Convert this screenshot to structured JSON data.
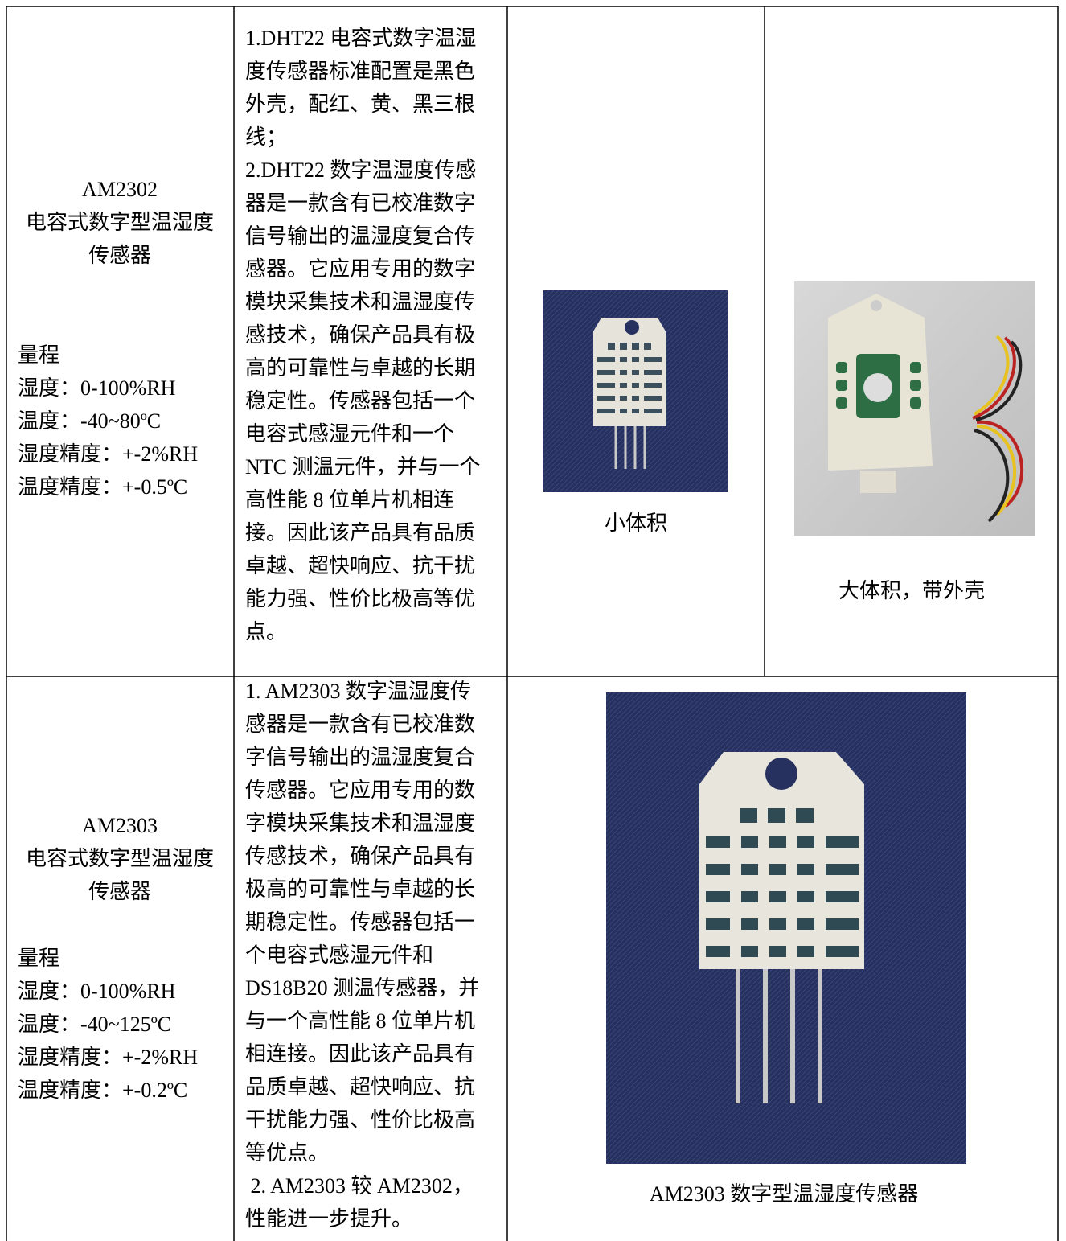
{
  "table": {
    "rows": [
      {
        "model": "AM2302",
        "name_lines": [
          "电容式数字型温湿度",
          "传感器"
        ],
        "specs": [
          "量程",
          "湿度：0-100%RH",
          "温度：-40~80ºC",
          "湿度精度：+-2%RH",
          "温度精度：+-0.5ºC"
        ],
        "description": [
          "1.DHT22 电容式数字温湿",
          "度传感器标准配置是黑色",
          "外壳，配红、黄、黑三根",
          "线；",
          "2.DHT22 数字温湿度传感",
          "器是一款含有已校准数字",
          "信号输出的温湿度复合传",
          "感器。它应用专用的数字",
          "模块采集技术和温湿度传",
          "感技术，确保产品具有极",
          "高的可靠性与卓越的长期",
          "稳定性。传感器包括一个",
          "电容式感湿元件和一个",
          "NTC 测温元件，并与一个",
          "高性能 8 位单片机相连",
          "接。因此该产品具有品质",
          "卓越、超快响应、抗干扰",
          "能力强、性价比极高等优",
          "点。"
        ],
        "captions": [
          "小体积",
          "大体积，带外壳"
        ]
      },
      {
        "model": "AM2303",
        "name_lines": [
          "电容式数字型温湿度",
          "传感器"
        ],
        "specs": [
          "量程",
          "湿度：0-100%RH",
          "温度：-40~125ºC",
          "湿度精度：+-2%RH",
          "温度精度：+-0.2ºC"
        ],
        "description": [
          "1. AM2303 数字温湿度传",
          "感器是一款含有已校准数",
          "字信号输出的温湿度复合",
          "传感器。它应用专用的数",
          "字模块采集技术和温湿度",
          "传感技术，确保产品具有",
          "极高的可靠性与卓越的长",
          "期稳定性。传感器包括一",
          "个电容式感湿元件和",
          "DS18B20 测温传感器，并",
          "与一个高性能 8 位单片机",
          "相连接。因此该产品具有",
          "品质卓越、超快响应、抗",
          "干扰能力强、性价比极高",
          "等优点。",
          " 2. AM2303 较 AM2302，",
          "性能进一步提升。"
        ],
        "captions": [
          "AM2303 数字型温湿度传感器"
        ]
      }
    ]
  }
}
